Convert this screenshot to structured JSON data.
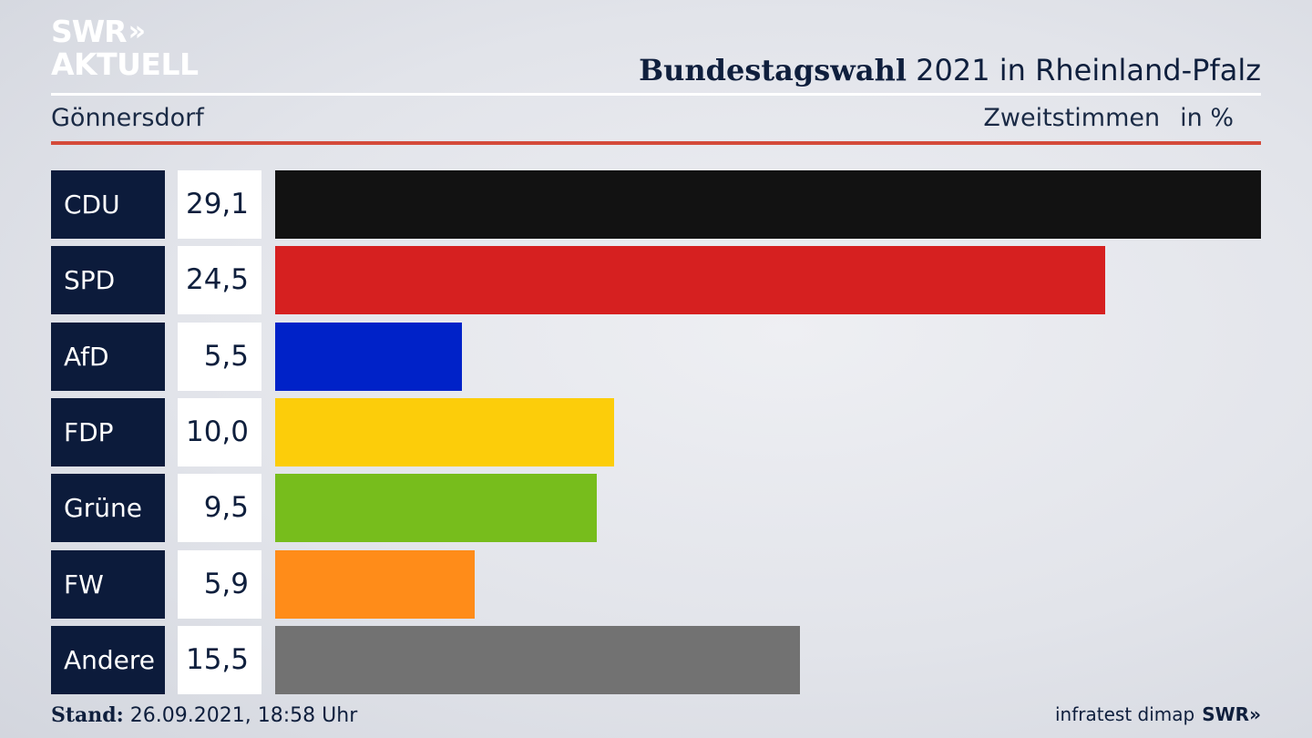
{
  "header": {
    "logo_top": "SWR",
    "logo_chevron": "»",
    "logo_bottom": "AKTUELL",
    "title_bold": "Bundestagswahl",
    "title_rest": " 2021 in Rheinland-Pfalz",
    "municipality": "Gönnersdorf",
    "vote_type": "Zweitstimmen",
    "unit": "in %"
  },
  "footer": {
    "stand_label": "Stand:",
    "stand_value": " 26.09.2021, 18:58 Uhr",
    "source": "infratest dimap",
    "brand": "SWR»"
  },
  "chart_data": {
    "type": "bar",
    "orientation": "horizontal",
    "categories": [
      "CDU",
      "SPD",
      "AfD",
      "FDP",
      "Grüne",
      "FW",
      "Andere"
    ],
    "values": [
      29.1,
      24.5,
      5.5,
      10.0,
      9.5,
      5.9,
      15.5
    ],
    "value_labels": [
      "29,1",
      "24,5",
      "5,5",
      "10,0",
      "9,5",
      "5,9",
      "15,5"
    ],
    "colors": [
      "#121212",
      "#d62020",
      "#0022c8",
      "#fccd0a",
      "#77bd1c",
      "#ff8c19",
      "#727272"
    ],
    "title": "Bundestagswahl 2021 in Rheinland-Pfalz",
    "subtitle": "Gönnersdorf",
    "xlabel": "",
    "ylabel": "",
    "xlim": [
      0,
      29.1
    ],
    "grid": false,
    "legend": "none"
  }
}
